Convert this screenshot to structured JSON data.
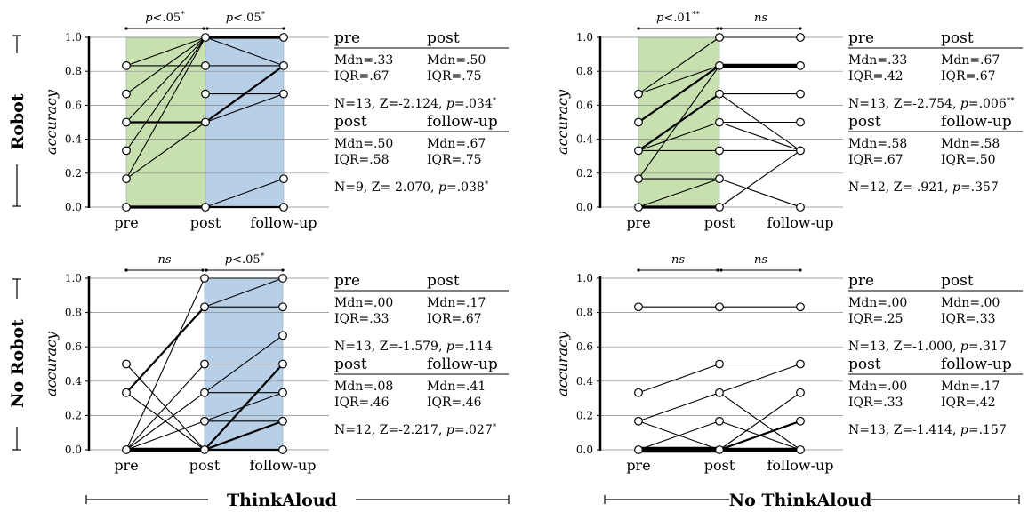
{
  "row_labels": [
    "Robot",
    "No Robot"
  ],
  "column_labels": [
    "ThinkAloud",
    "No ThinkAloud"
  ],
  "chart_data": [
    {
      "type": "line",
      "ylabel": "accuracy",
      "ylim": [
        0,
        1
      ],
      "yticks": [
        "0.0",
        "0.2",
        "0.4",
        "0.6",
        "0.8",
        "1.0"
      ],
      "categories": [
        "pre",
        "post",
        "follow-up"
      ],
      "shaded": [
        {
          "segment": 0,
          "color": "#c8e0b0"
        },
        {
          "segment": 1,
          "color": "#b8cfe8"
        }
      ],
      "significance": [
        {
          "label": "p<.05",
          "stars": "*"
        },
        {
          "label": "p<.05",
          "stars": "*"
        }
      ],
      "lines": [
        {
          "values": [
            0.0,
            0.0,
            null
          ],
          "weight": 3
        },
        {
          "values": [
            0.167,
            1.0,
            null
          ],
          "weight": 1
        },
        {
          "values": [
            0.333,
            1.0,
            null
          ],
          "weight": 1
        },
        {
          "values": [
            0.5,
            0.5,
            null
          ],
          "weight": 2
        },
        {
          "values": [
            0.5,
            1.0,
            null
          ],
          "weight": 1
        },
        {
          "values": [
            0.667,
            1.0,
            null
          ],
          "weight": 1
        },
        {
          "values": [
            0.833,
            0.833,
            null
          ],
          "weight": 1
        },
        {
          "values": [
            0.833,
            1.0,
            null
          ],
          "weight": 1
        },
        {
          "values": [
            0.167,
            0.5,
            null
          ],
          "weight": 1
        },
        {
          "values": [
            null,
            0.0,
            0.0
          ],
          "weight": 2
        },
        {
          "values": [
            null,
            0.0,
            0.167
          ],
          "weight": 1
        },
        {
          "values": [
            null,
            0.5,
            0.667
          ],
          "weight": 1
        },
        {
          "values": [
            null,
            0.5,
            0.833
          ],
          "weight": 2
        },
        {
          "values": [
            null,
            0.667,
            0.667
          ],
          "weight": 1
        },
        {
          "values": [
            null,
            0.833,
            0.833
          ],
          "weight": 1
        },
        {
          "values": [
            null,
            1.0,
            0.833
          ],
          "weight": 1
        },
        {
          "values": [
            null,
            1.0,
            1.0
          ],
          "weight": 3
        }
      ],
      "stats": [
        {
          "h1": "pre",
          "h2": "post",
          "mdn1": "Mdn=.33",
          "mdn2": "Mdn=.50",
          "iqr1": "IQR=.67",
          "iqr2": "IQR=.75",
          "test_plain": "N=13, Z=-2.124, ",
          "test_p": "p",
          "test_val": "=.034",
          "test_stars": "*"
        },
        {
          "h1": "post",
          "h2": "follow-up",
          "mdn1": "Mdn=.50",
          "mdn2": "Mdn=.67",
          "iqr1": "IQR=.58",
          "iqr2": "IQR=.75",
          "test_plain": "N=9, Z=-2.070, ",
          "test_p": "p",
          "test_val": "=.038",
          "test_stars": "*"
        }
      ]
    },
    {
      "type": "line",
      "ylabel": "accuracy",
      "ylim": [
        0,
        1
      ],
      "yticks": [
        "0.0",
        "0.2",
        "0.4",
        "0.6",
        "0.8",
        "1.0"
      ],
      "categories": [
        "pre",
        "post",
        "follow-up"
      ],
      "shaded": [
        {
          "segment": 0,
          "color": "#c8e0b0"
        }
      ],
      "significance": [
        {
          "label": "p<.01",
          "stars": "**"
        },
        {
          "label": "ns",
          "stars": ""
        }
      ],
      "lines": [
        {
          "values": [
            0.0,
            0.0,
            null
          ],
          "weight": 3
        },
        {
          "values": [
            0.0,
            0.167,
            null
          ],
          "weight": 1
        },
        {
          "values": [
            0.167,
            0.167,
            null
          ],
          "weight": 1
        },
        {
          "values": [
            0.333,
            0.333,
            null
          ],
          "weight": 1
        },
        {
          "values": [
            0.333,
            0.667,
            null
          ],
          "weight": 2
        },
        {
          "values": [
            0.333,
            0.5,
            null
          ],
          "weight": 1
        },
        {
          "values": [
            0.5,
            0.833,
            null
          ],
          "weight": 2
        },
        {
          "values": [
            0.667,
            0.833,
            null
          ],
          "weight": 1
        },
        {
          "values": [
            0.667,
            1.0,
            null
          ],
          "weight": 1
        },
        {
          "values": [
            0.167,
            0.833,
            null
          ],
          "weight": 1
        },
        {
          "values": [
            null,
            0.0,
            0.333
          ],
          "weight": 1
        },
        {
          "values": [
            null,
            0.167,
            0.0
          ],
          "weight": 1
        },
        {
          "values": [
            null,
            0.333,
            0.333
          ],
          "weight": 1
        },
        {
          "values": [
            null,
            0.5,
            0.333
          ],
          "weight": 1
        },
        {
          "values": [
            null,
            0.5,
            0.5
          ],
          "weight": 1
        },
        {
          "values": [
            null,
            0.667,
            0.333
          ],
          "weight": 1
        },
        {
          "values": [
            null,
            0.667,
            0.667
          ],
          "weight": 1
        },
        {
          "values": [
            null,
            0.833,
            0.833
          ],
          "weight": 4
        },
        {
          "values": [
            null,
            1.0,
            1.0
          ],
          "weight": 1
        }
      ],
      "stats": [
        {
          "h1": "pre",
          "h2": "post",
          "mdn1": "Mdn=.33",
          "mdn2": "Mdn=.67",
          "iqr1": "IQR=.42",
          "iqr2": "IQR=.67",
          "test_plain": "N=13, Z=-2.754, ",
          "test_p": "p",
          "test_val": "=.006",
          "test_stars": "**"
        },
        {
          "h1": "post",
          "h2": "follow-up",
          "mdn1": "Mdn=.58",
          "mdn2": "Mdn=.58",
          "iqr1": "IQR=.67",
          "iqr2": "IQR=.50",
          "test_plain": "N=12, Z=-.921, ",
          "test_p": "p",
          "test_val": "=.357",
          "test_stars": ""
        }
      ]
    },
    {
      "type": "line",
      "ylabel": "accuracy",
      "ylim": [
        0,
        1
      ],
      "yticks": [
        "0.0",
        "0.2",
        "0.4",
        "0.6",
        "0.8",
        "1.0"
      ],
      "categories": [
        "pre",
        "post",
        "follow-up"
      ],
      "shaded": [
        {
          "segment": 1,
          "color": "#b8cfe8"
        }
      ],
      "significance": [
        {
          "label": "ns",
          "stars": ""
        },
        {
          "label": "p<.05",
          "stars": "*"
        }
      ],
      "lines": [
        {
          "values": [
            0.0,
            0.0,
            null
          ],
          "weight": 4
        },
        {
          "values": [
            0.0,
            0.167,
            null
          ],
          "weight": 1
        },
        {
          "values": [
            0.0,
            0.333,
            null
          ],
          "weight": 1
        },
        {
          "values": [
            0.0,
            0.5,
            null
          ],
          "weight": 1
        },
        {
          "values": [
            0.0,
            1.0,
            null
          ],
          "weight": 1
        },
        {
          "values": [
            0.333,
            0.833,
            null
          ],
          "weight": 2
        },
        {
          "values": [
            0.333,
            0.0,
            null
          ],
          "weight": 1
        },
        {
          "values": [
            0.5,
            0.0,
            null
          ],
          "weight": 1
        },
        {
          "values": [
            null,
            0.0,
            0.0
          ],
          "weight": 2
        },
        {
          "values": [
            null,
            0.0,
            0.167
          ],
          "weight": 2
        },
        {
          "values": [
            null,
            0.0,
            0.5
          ],
          "weight": 2
        },
        {
          "values": [
            null,
            0.167,
            0.333
          ],
          "weight": 1
        },
        {
          "values": [
            null,
            0.167,
            0.167
          ],
          "weight": 1
        },
        {
          "values": [
            null,
            0.333,
            0.333
          ],
          "weight": 1
        },
        {
          "values": [
            null,
            0.333,
            0.667
          ],
          "weight": 1
        },
        {
          "values": [
            null,
            0.5,
            0.5
          ],
          "weight": 1
        },
        {
          "values": [
            null,
            0.833,
            0.833
          ],
          "weight": 1
        },
        {
          "values": [
            null,
            0.833,
            1.0
          ],
          "weight": 1
        },
        {
          "values": [
            null,
            1.0,
            1.0
          ],
          "weight": 1
        }
      ],
      "stats": [
        {
          "h1": "pre",
          "h2": "post",
          "mdn1": "Mdn=.00",
          "mdn2": "Mdn=.17",
          "iqr1": "IQR=.33",
          "iqr2": "IQR=.67",
          "test_plain": "N=13, Z=-1.579, ",
          "test_p": "p",
          "test_val": "=.114",
          "test_stars": ""
        },
        {
          "h1": "post",
          "h2": "follow-up",
          "mdn1": "Mdn=.08",
          "mdn2": "Mdn=.41",
          "iqr1": "IQR=.46",
          "iqr2": "IQR=.46",
          "test_plain": "N=12, Z=-2.217, ",
          "test_p": "p",
          "test_val": "=.027",
          "test_stars": "*"
        }
      ]
    },
    {
      "type": "line",
      "ylabel": "accuracy",
      "ylim": [
        0,
        1
      ],
      "yticks": [
        "0.0",
        "0.2",
        "0.4",
        "0.6",
        "0.8",
        "1.0"
      ],
      "categories": [
        "pre",
        "post",
        "follow-up"
      ],
      "shaded": [],
      "significance": [
        {
          "label": "ns",
          "stars": ""
        },
        {
          "label": "ns",
          "stars": ""
        }
      ],
      "lines": [
        {
          "values": [
            0.0,
            0.0,
            null
          ],
          "weight": 6
        },
        {
          "values": [
            0.167,
            0.0,
            null
          ],
          "weight": 1
        },
        {
          "values": [
            0.167,
            0.333,
            null
          ],
          "weight": 1
        },
        {
          "values": [
            0.333,
            0.5,
            null
          ],
          "weight": 1
        },
        {
          "values": [
            0.833,
            0.833,
            null
          ],
          "weight": 1
        },
        {
          "values": [
            0.0,
            0.167,
            null
          ],
          "weight": 1
        },
        {
          "values": [
            null,
            0.0,
            0.0
          ],
          "weight": 4
        },
        {
          "values": [
            null,
            0.0,
            0.167
          ],
          "weight": 2
        },
        {
          "values": [
            null,
            0.0,
            0.333
          ],
          "weight": 1
        },
        {
          "values": [
            null,
            0.167,
            0.0
          ],
          "weight": 1
        },
        {
          "values": [
            null,
            0.333,
            0.5
          ],
          "weight": 1
        },
        {
          "values": [
            null,
            0.333,
            0.0
          ],
          "weight": 1
        },
        {
          "values": [
            null,
            0.5,
            0.5
          ],
          "weight": 1
        },
        {
          "values": [
            null,
            0.833,
            0.833
          ],
          "weight": 1
        }
      ],
      "stats": [
        {
          "h1": "pre",
          "h2": "post",
          "mdn1": "Mdn=.00",
          "mdn2": "Mdn=.00",
          "iqr1": "IQR=.25",
          "iqr2": "IQR=.33",
          "test_plain": "N=13, Z=-1.000, ",
          "test_p": "p",
          "test_val": "=.317",
          "test_stars": ""
        },
        {
          "h1": "post",
          "h2": "follow-up",
          "mdn1": "Mdn=.00",
          "mdn2": "Mdn=.17",
          "iqr1": "IQR=.33",
          "iqr2": "IQR=.42",
          "test_plain": "N=13, Z=-1.414, ",
          "test_p": "p",
          "test_val": "=.157",
          "test_stars": ""
        }
      ]
    }
  ]
}
